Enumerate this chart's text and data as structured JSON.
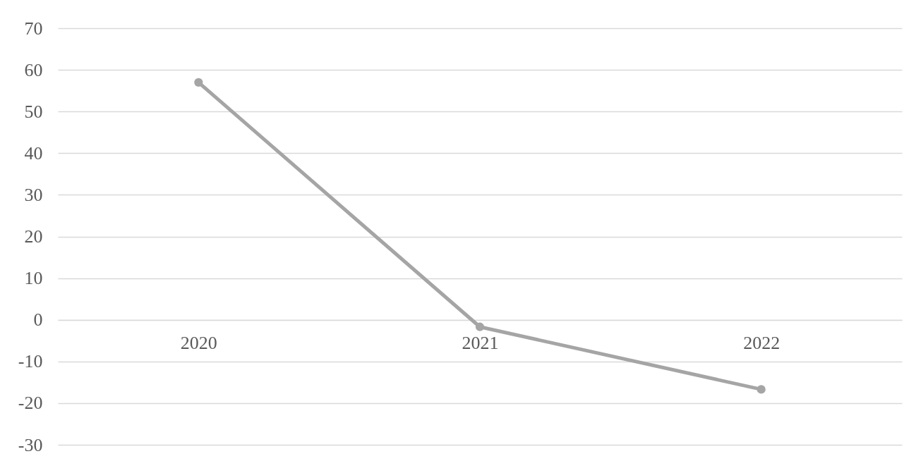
{
  "chart_data": {
    "type": "line",
    "categories": [
      "2020",
      "2021",
      "2022"
    ],
    "series": [
      {
        "color": "#a5a5a5",
        "values": [
          57,
          -1.7,
          -16.7
        ]
      }
    ],
    "ylim": [
      -30,
      70
    ],
    "yticks": [
      -30,
      -20,
      -10,
      0,
      10,
      20,
      30,
      40,
      50,
      60,
      70
    ],
    "grid": "y",
    "marker": "circle",
    "line_style": "solid"
  }
}
